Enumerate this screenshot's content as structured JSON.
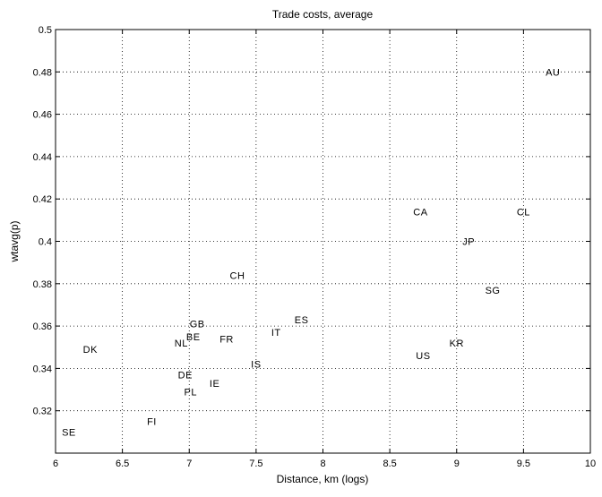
{
  "chart_data": {
    "type": "scatter",
    "title": "Trade costs, average",
    "xlabel": "Distance, km (logs)",
    "ylabel": "wtavg(p)",
    "xlim": [
      6,
      10
    ],
    "ylim": [
      0.3,
      0.5
    ],
    "grid": true,
    "x_ticks": [
      "6",
      "6.5",
      "7",
      "7.5",
      "8",
      "8.5",
      "9",
      "9.5",
      "10"
    ],
    "y_ticks": [
      "0.32",
      "0.34",
      "0.36",
      "0.38",
      "0.4",
      "0.42",
      "0.44",
      "0.46",
      "0.48",
      "0.5"
    ],
    "points": [
      {
        "label": "AU",
        "x": 9.72,
        "y": 0.48
      },
      {
        "label": "CA",
        "x": 8.73,
        "y": 0.414
      },
      {
        "label": "CL",
        "x": 9.5,
        "y": 0.414
      },
      {
        "label": "JP",
        "x": 9.09,
        "y": 0.4
      },
      {
        "label": "CH",
        "x": 7.36,
        "y": 0.384
      },
      {
        "label": "SG",
        "x": 9.27,
        "y": 0.377
      },
      {
        "label": "ES",
        "x": 7.84,
        "y": 0.363
      },
      {
        "label": "GB",
        "x": 7.06,
        "y": 0.361
      },
      {
        "label": "IT",
        "x": 7.65,
        "y": 0.357
      },
      {
        "label": "BE",
        "x": 7.03,
        "y": 0.355
      },
      {
        "label": "FR",
        "x": 7.28,
        "y": 0.354
      },
      {
        "label": "NL",
        "x": 6.94,
        "y": 0.352
      },
      {
        "label": "KR",
        "x": 9.0,
        "y": 0.352
      },
      {
        "label": "DK",
        "x": 6.26,
        "y": 0.349
      },
      {
        "label": "US",
        "x": 8.75,
        "y": 0.346
      },
      {
        "label": "IS",
        "x": 7.5,
        "y": 0.342
      },
      {
        "label": "DE",
        "x": 6.97,
        "y": 0.337
      },
      {
        "label": "IE",
        "x": 7.19,
        "y": 0.333
      },
      {
        "label": "PL",
        "x": 7.01,
        "y": 0.329
      },
      {
        "label": "FI",
        "x": 6.72,
        "y": 0.315
      },
      {
        "label": "SE",
        "x": 6.1,
        "y": 0.31
      }
    ]
  }
}
